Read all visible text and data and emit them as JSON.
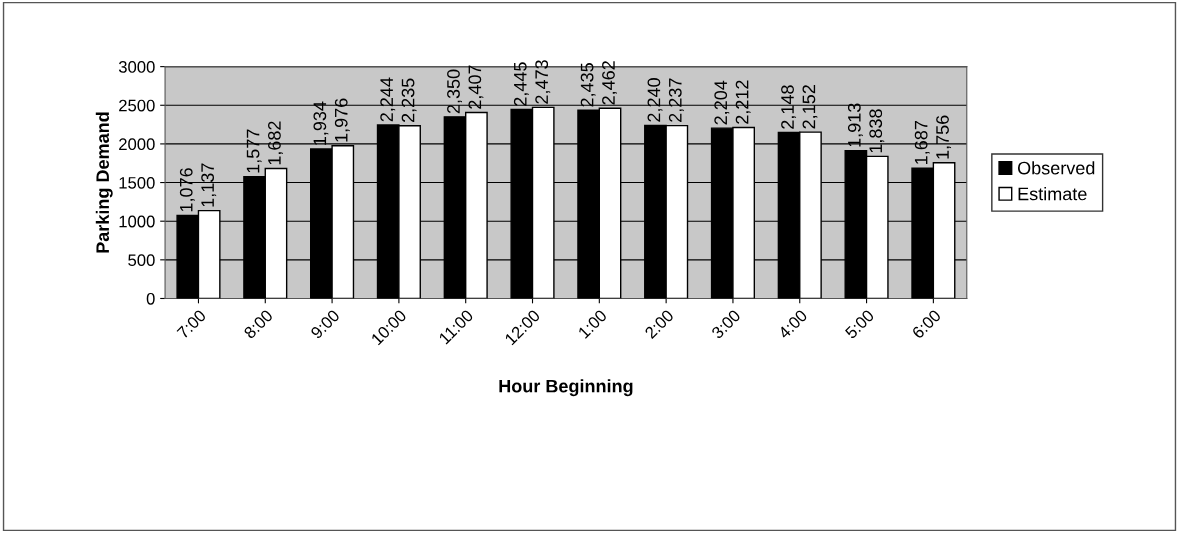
{
  "chart_data": {
    "type": "bar",
    "xlabel": "Hour Beginning",
    "ylabel": "Parking Demand",
    "categories": [
      "7:00",
      "8:00",
      "9:00",
      "10:00",
      "11:00",
      "12:00",
      "1:00",
      "2:00",
      "3:00",
      "4:00",
      "5:00",
      "6:00"
    ],
    "series": [
      {
        "name": "Observed",
        "color": "#000000",
        "values": [
          1076,
          1577,
          1934,
          2244,
          2350,
          2445,
          2435,
          2240,
          2204,
          2148,
          1913,
          1687
        ],
        "value_labels": [
          "1,076",
          "1,577",
          "1,934",
          "2,244",
          "2,350",
          "2,445",
          "2,435",
          "2,240",
          "2,204",
          "2,148",
          "1,913",
          "1,687"
        ]
      },
      {
        "name": "Estimate",
        "color": "#ffffff",
        "values": [
          1137,
          1682,
          1976,
          2235,
          2407,
          2473,
          2462,
          2237,
          2212,
          2152,
          1838,
          1756
        ],
        "value_labels": [
          "1,137",
          "1,682",
          "1,976",
          "2,235",
          "2,407",
          "2,473",
          "2,462",
          "2,237",
          "2,212",
          "2,152",
          "1,838",
          "1,756"
        ]
      }
    ],
    "ylim": [
      0,
      3000
    ],
    "yticks": [
      0,
      500,
      1000,
      1500,
      2000,
      2500,
      3000
    ],
    "grid": "y",
    "legend": "right"
  }
}
